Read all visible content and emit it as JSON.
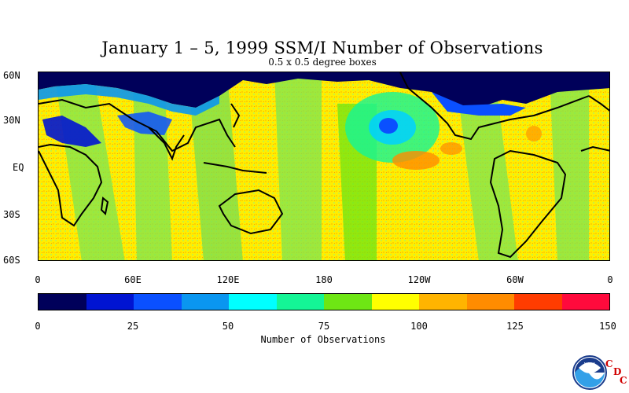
{
  "title": "January 1 – 5, 1999 SSM/I Number of Observations",
  "subtitle": "0.5 x 0.5 degree boxes",
  "lat_labels": [
    "60N",
    "30N",
    "EQ",
    "30S",
    "60S"
  ],
  "lon_labels": [
    "0",
    "60E",
    "120E",
    "180",
    "120W",
    "60W",
    "0"
  ],
  "colorbar": {
    "title": "Number of Observations",
    "tick_labels": [
      "0",
      "25",
      "50",
      "75",
      "100",
      "125",
      "150"
    ],
    "colors": [
      "#00005a",
      "#0014d2",
      "#0a50ff",
      "#0a96f0",
      "#00ffff",
      "#14f596",
      "#6ee614",
      "#ffff00",
      "#ffb400",
      "#ff8c00",
      "#ff3c00",
      "#ff0a3c"
    ]
  },
  "logo": {
    "noaa": "NOAA",
    "c1": "C",
    "d": "D",
    "c2": "C"
  },
  "colors": {
    "land": "#000000",
    "ice": "#00005a",
    "ocean_typical": "#ffff00"
  }
}
